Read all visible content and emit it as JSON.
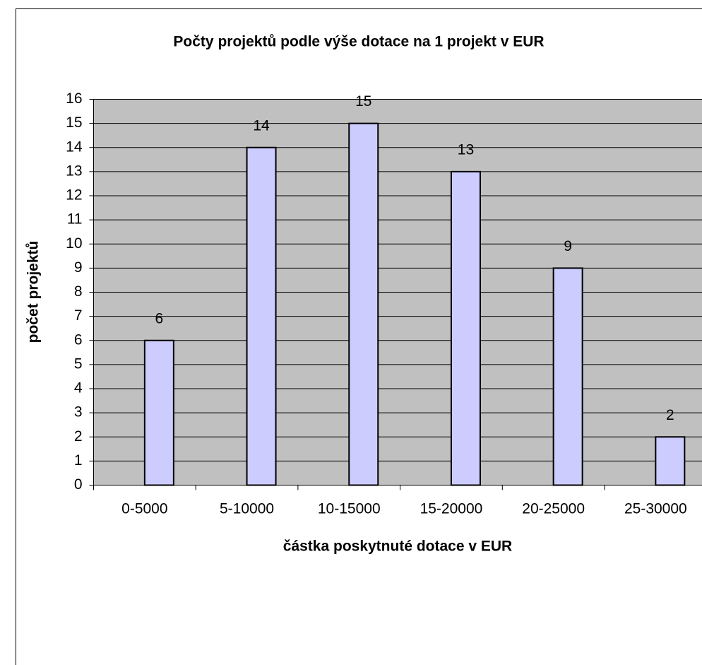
{
  "chart_data": {
    "type": "bar",
    "title": "Počty projektů podle výše dotace na 1 projekt v EUR",
    "xlabel": "částka poskytnuté dotace v EUR",
    "ylabel": "počet projektů",
    "categories": [
      "0-5000",
      "5-10000",
      "10-15000",
      "15-20000",
      "20-25000",
      "25-30000"
    ],
    "values": [
      6,
      14,
      15,
      13,
      9,
      2
    ],
    "color": "#ccccff",
    "ylim": [
      0,
      16
    ],
    "yticks": [
      0,
      1,
      2,
      3,
      4,
      5,
      6,
      7,
      8,
      9,
      10,
      11,
      12,
      13,
      14,
      15,
      16
    ],
    "grid": true
  }
}
